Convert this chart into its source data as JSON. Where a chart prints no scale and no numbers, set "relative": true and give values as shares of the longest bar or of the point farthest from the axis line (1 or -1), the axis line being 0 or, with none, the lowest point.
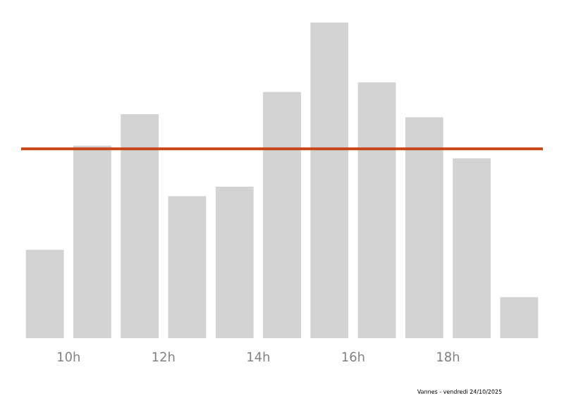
{
  "chart_data": {
    "type": "bar",
    "relative": true,
    "x": [
      9.5,
      10.5,
      11.5,
      12.5,
      13.5,
      14.5,
      15.5,
      16.5,
      17.5,
      18.5,
      19.5
    ],
    "values": [
      0.28,
      0.61,
      0.71,
      0.45,
      0.48,
      0.78,
      1,
      0.81,
      0.7,
      0.57,
      0.13
    ],
    "color": "#d3d3d3",
    "xlim": [
      9,
      20
    ],
    "xticks": [
      {
        "value": 10,
        "label": "10h"
      },
      {
        "value": 12,
        "label": "12h"
      },
      {
        "value": 14,
        "label": "14h"
      },
      {
        "value": 16,
        "label": "16h"
      },
      {
        "value": 18,
        "label": "18h"
      }
    ],
    "ref_lines": [
      {
        "axis": "y",
        "value": 0.6,
        "color": "#c8461a"
      }
    ],
    "annotations": [
      "Vannes - vendredi 24/10/2025"
    ],
    "grid": false
  }
}
